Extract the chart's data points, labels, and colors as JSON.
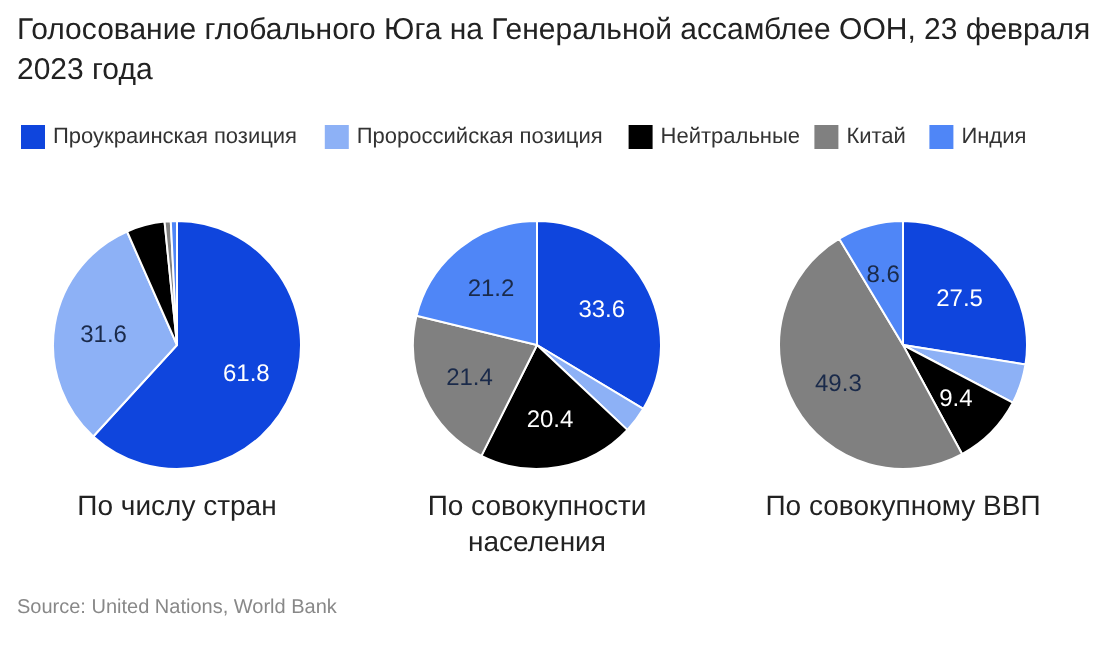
{
  "chart_data": {
    "type": "pie",
    "title": "Голосование глобального Юга на Генеральной ассамблее ООН, 23 февраля 2023 года",
    "legend": "top",
    "categories": [
      "Проукраинская позиция",
      "Пророссийская позиция",
      "Нейтральные",
      "Китай",
      "Индия"
    ],
    "colors": [
      "#0f45dd",
      "#8db1f6",
      "#000000",
      "#808080",
      "#4f86f7"
    ],
    "series": [
      {
        "name": "По числу стран",
        "values": [
          61.8,
          31.6,
          5.0,
          0.8,
          0.8
        ],
        "value_labels": [
          "61.8",
          "31.6",
          null,
          null,
          null
        ]
      },
      {
        "name": "По совокупности населения",
        "values": [
          33.6,
          3.4,
          20.4,
          21.4,
          21.2
        ],
        "value_labels": [
          "33.6",
          null,
          "20.4",
          "21.4",
          "21.2"
        ]
      },
      {
        "name": "По совокупному ВВП",
        "values": [
          27.5,
          5.2,
          9.4,
          49.3,
          8.6
        ],
        "value_labels": [
          "27.5",
          null,
          "9.4",
          "49.3",
          "8.6"
        ]
      }
    ],
    "annotations": [
      "Source: United Nations, World Bank"
    ]
  }
}
